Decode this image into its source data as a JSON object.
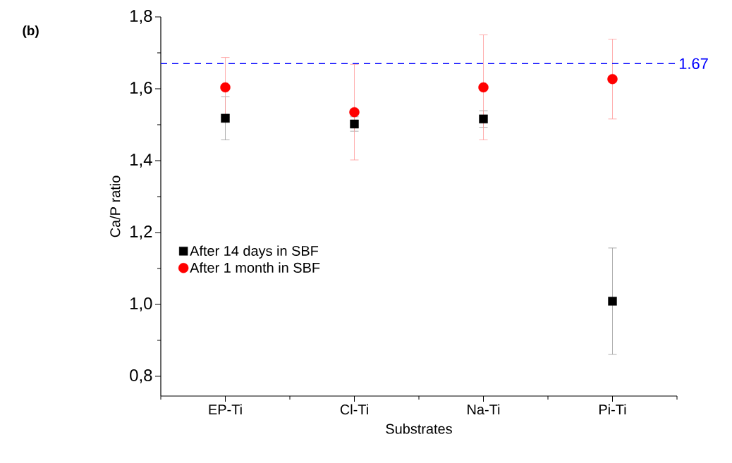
{
  "chart_data": {
    "type": "scatter",
    "title": "(b)",
    "xlabel": "Substrates",
    "ylabel": "Ca/P ratio",
    "categories": [
      "EP-Ti",
      "Cl-Ti",
      "Na-Ti",
      "Pi-Ti"
    ],
    "series": [
      {
        "name": "After 14 days in SBF",
        "color": "#000000",
        "marker": "square",
        "values": [
          1.518,
          1.502,
          1.516,
          1.009
        ],
        "errors": [
          0.06,
          0.02,
          0.023,
          0.148
        ]
      },
      {
        "name": "After 1 month in SBF",
        "color": "#ff0000",
        "marker": "circle",
        "values": [
          1.604,
          1.535,
          1.604,
          1.627
        ],
        "errors": [
          0.083,
          0.133,
          0.146,
          0.111
        ]
      }
    ],
    "ylim": [
      0.745,
      1.8
    ],
    "yticks": [
      {
        "value": 0.8,
        "label": "0,8"
      },
      {
        "value": 1.0,
        "label": "1,0"
      },
      {
        "value": 1.2,
        "label": "1,2"
      },
      {
        "value": 1.4,
        "label": "1,4"
      },
      {
        "value": 1.6,
        "label": "1,6"
      },
      {
        "value": 1.8,
        "label": "1,8"
      }
    ],
    "ref_lines": [
      {
        "axis": "y",
        "value": 1.67,
        "label": "1.67",
        "color": "#0000ff",
        "line_style": "dashed"
      }
    ],
    "legend": "left",
    "grid": false
  }
}
